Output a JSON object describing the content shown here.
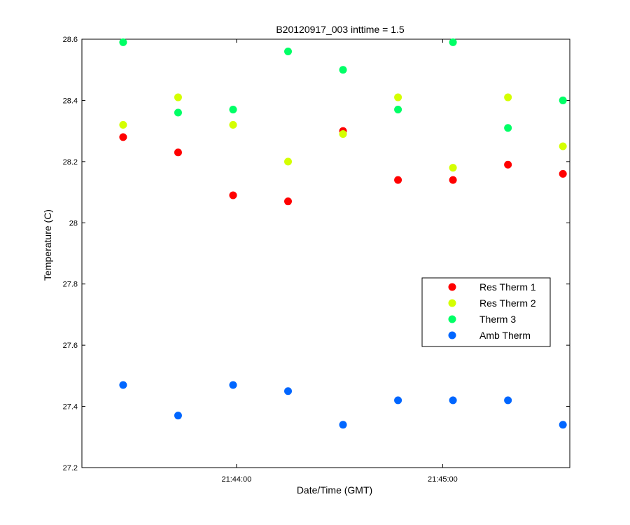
{
  "chart_data": {
    "type": "scatter",
    "title": "B20120917_003 inttime = 1.5",
    "xlabel": "Date/Time (GMT)",
    "ylabel": "Temperature (C)",
    "xlim": [
      "21:43:15",
      "21:45:37"
    ],
    "ylim": [
      27.2,
      28.6
    ],
    "x_ticks": [
      "21:44:00",
      "21:45:00"
    ],
    "y_ticks": [
      "27.2",
      "27.4",
      "27.6",
      "27.8",
      "28",
      "28.2",
      "28.4",
      "28.6"
    ],
    "grid": false,
    "legend_position": "right",
    "x": [
      "21:43:27",
      "21:43:43",
      "21:43:59",
      "21:44:15",
      "21:44:31",
      "21:44:47",
      "21:45:03",
      "21:45:19",
      "21:45:35"
    ],
    "series": [
      {
        "name": "Res Therm 1",
        "color": "#ff0000",
        "values": [
          28.28,
          28.23,
          28.09,
          28.07,
          28.3,
          28.14,
          28.14,
          28.19,
          28.16
        ]
      },
      {
        "name": "Res Therm 2",
        "color": "#d4ff00",
        "values": [
          28.32,
          28.41,
          28.32,
          28.2,
          28.29,
          28.41,
          28.18,
          28.41,
          28.25
        ]
      },
      {
        "name": "Therm 3",
        "color": "#00ff66",
        "values": [
          28.59,
          28.36,
          28.37,
          28.56,
          28.5,
          28.37,
          28.59,
          28.31,
          28.4
        ]
      },
      {
        "name": "Amb Therm",
        "color": "#0066ff",
        "values": [
          27.47,
          27.37,
          27.47,
          27.45,
          27.34,
          27.42,
          27.42,
          27.42,
          27.34
        ]
      }
    ]
  }
}
